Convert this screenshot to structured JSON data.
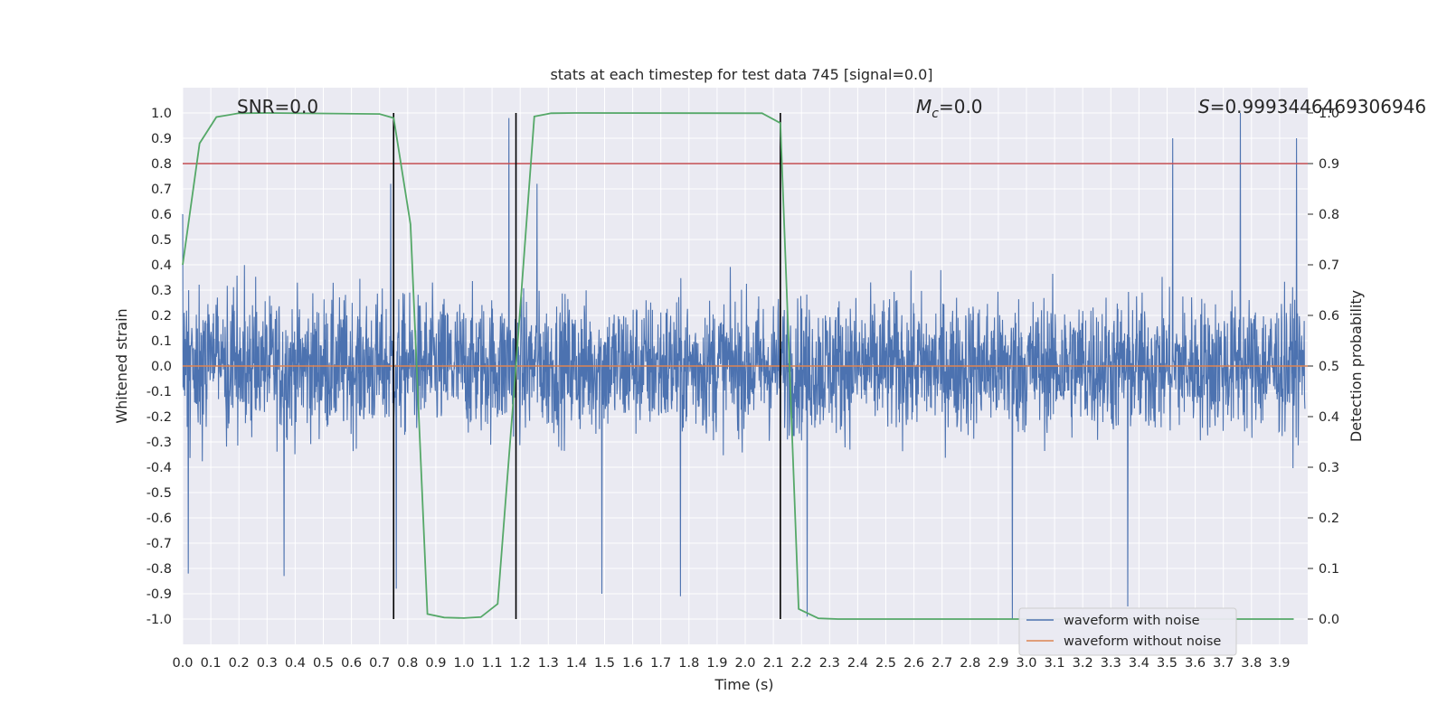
{
  "chart_data": {
    "type": "line",
    "title": "stats at each timestep for test data 745 [signal=0.0]",
    "xlabel": "Time (s)",
    "ylabel": "Whitened strain",
    "y2label": "Detection probability",
    "xlim": [
      0.0,
      4.0
    ],
    "ylim": [
      -1.1,
      1.1
    ],
    "y2lim": [
      -0.0,
      1.0
    ],
    "x_ticks": [
      "0.0",
      "0.1",
      "0.2",
      "0.3",
      "0.4",
      "0.5",
      "0.6",
      "0.7",
      "0.8",
      "0.9",
      "1.0",
      "1.1",
      "1.2",
      "1.3",
      "1.4",
      "1.5",
      "1.6",
      "1.7",
      "1.8",
      "1.9",
      "2.0",
      "2.1",
      "2.2",
      "2.3",
      "2.4",
      "2.5",
      "2.6",
      "2.7",
      "2.8",
      "2.9",
      "3.0",
      "3.1",
      "3.2",
      "3.3",
      "3.4",
      "3.5",
      "3.6",
      "3.7",
      "3.8",
      "3.9"
    ],
    "y_ticks": [
      "1.0",
      "0.9",
      "0.8",
      "0.7",
      "0.6",
      "0.5",
      "0.4",
      "0.3",
      "0.2",
      "0.1",
      "0.0",
      "-0.1",
      "-0.2",
      "-0.3",
      "-0.4",
      "-0.5",
      "-0.6",
      "-0.7",
      "-0.8",
      "-0.9",
      "-1.0"
    ],
    "y2_ticks": [
      "1.0",
      "0.9",
      "0.8",
      "0.7",
      "0.6",
      "0.5",
      "0.4",
      "0.3",
      "0.2",
      "0.1",
      "0.0"
    ],
    "annotations": {
      "snr": "SNR=0.0",
      "mc_symbol": "M",
      "mc_sub": "c",
      "mc_value": "=0.0",
      "s_symbol": "S",
      "s_value": "=0.9993446469306946"
    },
    "threshold_line": {
      "axis": "y2",
      "value": 0.9,
      "color": "#c44e52"
    },
    "vertical_lines": [
      0.75,
      1.185,
      2.125
    ],
    "series": [
      {
        "name": "waveform with noise",
        "color": "#4c72b0",
        "kind": "noise",
        "typical_amplitude": 0.35,
        "notable_peaks": [
          {
            "x": 0.0,
            "y": 0.6
          },
          {
            "x": 0.02,
            "y": -0.82
          },
          {
            "x": 0.36,
            "y": -0.83
          },
          {
            "x": 0.74,
            "y": 0.72
          },
          {
            "x": 0.76,
            "y": -0.88
          },
          {
            "x": 1.16,
            "y": 0.98
          },
          {
            "x": 1.26,
            "y": 0.72
          },
          {
            "x": 1.49,
            "y": -0.9
          },
          {
            "x": 1.77,
            "y": -0.91
          },
          {
            "x": 2.22,
            "y": -0.99
          },
          {
            "x": 2.95,
            "y": -1.0
          },
          {
            "x": 3.36,
            "y": -0.95
          },
          {
            "x": 3.52,
            "y": 0.9
          },
          {
            "x": 3.76,
            "y": 1.0
          },
          {
            "x": 3.96,
            "y": 0.9
          }
        ]
      },
      {
        "name": "waveform without noise",
        "color": "#dd8452",
        "x": [
          0.0,
          4.0
        ],
        "y": [
          0.0,
          0.0
        ]
      },
      {
        "name": "detection probability",
        "color": "#55a868",
        "axis": "y2",
        "x": [
          0.0,
          0.06,
          0.12,
          0.2,
          0.3,
          0.7,
          0.75,
          0.81,
          0.87,
          0.93,
          1.0,
          1.06,
          1.12,
          1.185,
          1.25,
          1.31,
          1.4,
          2.06,
          2.125,
          2.19,
          2.26,
          2.33,
          3.95
        ],
        "y": [
          0.7,
          0.94,
          0.992,
          0.9995,
          1.0,
          0.998,
          0.99,
          0.78,
          0.01,
          0.003,
          0.002,
          0.004,
          0.03,
          0.5,
          0.993,
          0.9995,
          1.0,
          0.9995,
          0.98,
          0.02,
          0.0015,
          0.0,
          0.0
        ]
      }
    ],
    "legend": {
      "position": "lower-right",
      "entries": [
        "waveform with noise",
        "waveform without noise"
      ]
    },
    "colors": {
      "background": "#eaeaf2",
      "grid": "#ffffff",
      "text": "#262626",
      "vline": "#000000"
    }
  }
}
